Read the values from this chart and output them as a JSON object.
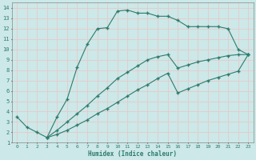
{
  "xlabel": "Humidex (Indice chaleur)",
  "bg_color": "#cce8e8",
  "grid_color": "#e8c8c8",
  "line_color": "#2e7b6e",
  "xlim": [
    -0.5,
    23.5
  ],
  "ylim": [
    1,
    14.5
  ],
  "xticks": [
    0,
    1,
    2,
    3,
    4,
    5,
    6,
    7,
    8,
    9,
    10,
    11,
    12,
    13,
    14,
    15,
    16,
    17,
    18,
    19,
    20,
    21,
    22,
    23
  ],
  "yticks": [
    1,
    2,
    3,
    4,
    5,
    6,
    7,
    8,
    9,
    10,
    11,
    12,
    13,
    14
  ],
  "line1_x": [
    0,
    1,
    2,
    3,
    4,
    5,
    6,
    7,
    8,
    9,
    10,
    11,
    12,
    13,
    14,
    15,
    16,
    17,
    18,
    19,
    20,
    21,
    22,
    23
  ],
  "line1_y": [
    3.5,
    2.5,
    2.0,
    1.5,
    3.5,
    5.2,
    8.3,
    10.5,
    12.0,
    12.1,
    13.7,
    13.8,
    13.5,
    13.5,
    13.2,
    13.2,
    12.8,
    12.2,
    12.2,
    12.2,
    12.2,
    12.0,
    10.0,
    9.5
  ],
  "line2_x": [
    3,
    4,
    5,
    6,
    7,
    8,
    9,
    10,
    11,
    12,
    13,
    14,
    15,
    16,
    17,
    18,
    19,
    20,
    21,
    22,
    23
  ],
  "line2_y": [
    1.5,
    2.2,
    3.0,
    3.8,
    4.6,
    5.5,
    6.3,
    7.2,
    7.8,
    8.4,
    9.0,
    9.3,
    9.5,
    8.2,
    8.5,
    8.8,
    9.0,
    9.2,
    9.4,
    9.5,
    9.5
  ],
  "line3_x": [
    3,
    4,
    5,
    6,
    7,
    8,
    9,
    10,
    11,
    12,
    13,
    14,
    15,
    16,
    17,
    18,
    19,
    20,
    21,
    22,
    23
  ],
  "line3_y": [
    1.5,
    1.8,
    2.2,
    2.7,
    3.2,
    3.8,
    4.3,
    4.9,
    5.5,
    6.1,
    6.6,
    7.2,
    7.7,
    5.8,
    6.2,
    6.6,
    7.0,
    7.3,
    7.6,
    7.9,
    9.5
  ]
}
